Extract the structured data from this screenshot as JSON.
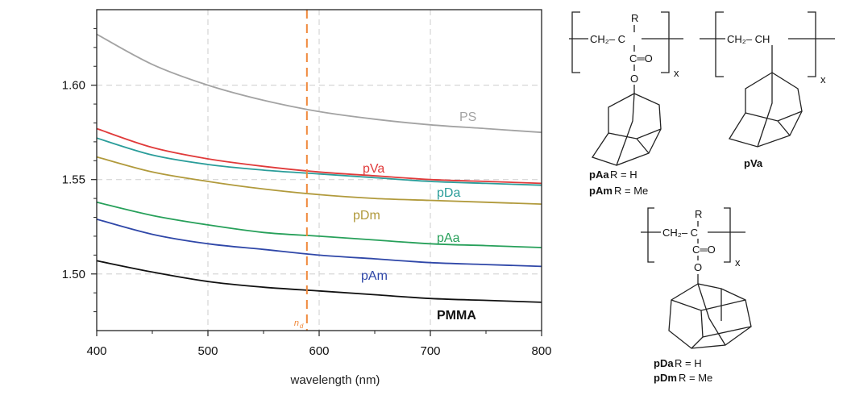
{
  "chart_data": {
    "type": "line",
    "title": "",
    "xlabel": "wavelength (nm)",
    "ylabel": "",
    "xlim": [
      400,
      800
    ],
    "ylim": [
      1.47,
      1.64
    ],
    "x_ticks": [
      400,
      500,
      600,
      700,
      800
    ],
    "y_ticks": [
      1.5,
      1.55,
      1.6
    ],
    "x_tick_labels": [
      "400",
      "500",
      "600",
      "700",
      "800"
    ],
    "y_tick_labels": [
      "1.50",
      "1.55",
      "1.60"
    ],
    "grid": true,
    "reference_line": {
      "label": "n",
      "subscript": "d",
      "x": 589,
      "color": "#f0883a"
    },
    "x": [
      400,
      450,
      500,
      550,
      600,
      650,
      700,
      750,
      800
    ],
    "series": [
      {
        "name": "PS",
        "color": "#a3a3a3",
        "values": [
          1.627,
          1.611,
          1.6,
          1.592,
          1.586,
          1.582,
          1.579,
          1.577,
          1.575
        ]
      },
      {
        "name": "pVa",
        "color": "#e03a3a",
        "values": [
          1.577,
          1.567,
          1.561,
          1.557,
          1.554,
          1.552,
          1.55,
          1.549,
          1.548
        ]
      },
      {
        "name": "pDa",
        "color": "#2a9d9a",
        "values": [
          1.572,
          1.563,
          1.558,
          1.555,
          1.553,
          1.551,
          1.549,
          1.548,
          1.547
        ]
      },
      {
        "name": "pDm",
        "color": "#b19a3c",
        "values": [
          1.562,
          1.554,
          1.549,
          1.545,
          1.542,
          1.54,
          1.539,
          1.538,
          1.537
        ]
      },
      {
        "name": "pAa",
        "color": "#27a05a",
        "values": [
          1.538,
          1.531,
          1.526,
          1.522,
          1.52,
          1.518,
          1.516,
          1.515,
          1.514
        ]
      },
      {
        "name": "pAm",
        "color": "#2f47a8",
        "values": [
          1.529,
          1.521,
          1.516,
          1.513,
          1.51,
          1.508,
          1.506,
          1.505,
          1.504
        ]
      },
      {
        "name": "PMMA",
        "color": "#111111",
        "values": [
          1.507,
          1.501,
          1.496,
          1.493,
          1.491,
          1.489,
          1.487,
          1.486,
          1.485
        ]
      }
    ]
  },
  "structures": {
    "x_label": "x",
    "ch2_ch": "CH₂– CH",
    "ch2_c": "CH₂– C",
    "r": "R",
    "carbonyl": "C═O",
    "oxygen": "O",
    "pAa_caption": "pAa",
    "pAa_r": " R = H",
    "pAm_caption": "pAm",
    "pAm_r": " R = Me",
    "pVa_caption": "pVa",
    "pDa_caption": "pDa",
    "pDa_r": " R = H",
    "pDm_caption": "pDm",
    "pDm_r": " R = Me"
  }
}
